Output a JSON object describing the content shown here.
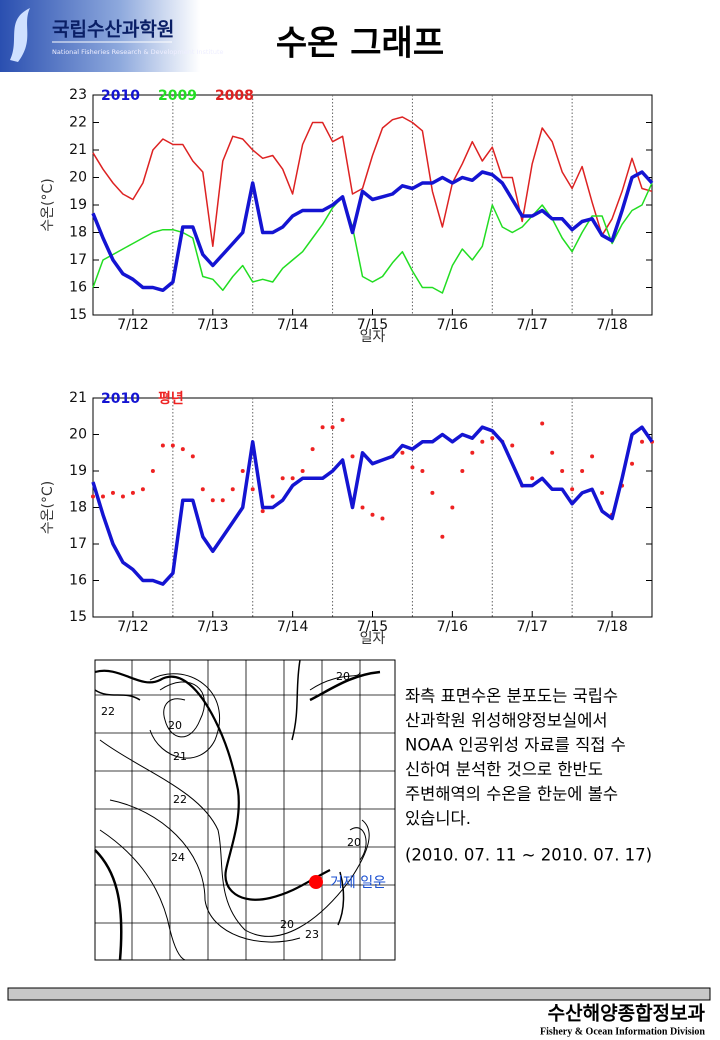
{
  "header": {
    "org": "국립수산과학원",
    "org_en": "National Fisheries Research & Development Institute",
    "title": "수온 그래프"
  },
  "chart_data": [
    {
      "type": "line",
      "xlabel": "일자",
      "ylabel": "수온(°C)",
      "xlim": [
        12,
        19
      ],
      "ylim": [
        15,
        23
      ],
      "xticks": [
        {
          "value": 12.5,
          "label": "7/12"
        },
        {
          "value": 13.5,
          "label": "7/13"
        },
        {
          "value": 14.5,
          "label": "7/14"
        },
        {
          "value": 15.5,
          "label": "7/15"
        },
        {
          "value": 16.5,
          "label": "7/16"
        },
        {
          "value": 17.5,
          "label": "7/17"
        },
        {
          "value": 18.5,
          "label": "7/18"
        }
      ],
      "yticks": [
        15,
        16,
        17,
        18,
        19,
        20,
        21,
        22,
        23
      ],
      "x": [
        12,
        12.125,
        12.25,
        12.375,
        12.5,
        12.625,
        12.75,
        12.875,
        13,
        13.125,
        13.25,
        13.375,
        13.5,
        13.625,
        13.75,
        13.875,
        14,
        14.125,
        14.25,
        14.375,
        14.5,
        14.625,
        14.75,
        14.875,
        15,
        15.125,
        15.25,
        15.375,
        15.5,
        15.625,
        15.75,
        15.875,
        16,
        16.125,
        16.25,
        16.375,
        16.5,
        16.625,
        16.75,
        16.875,
        17,
        17.125,
        17.25,
        17.375,
        17.5,
        17.625,
        17.75,
        17.875,
        18,
        18.125,
        18.25,
        18.375,
        18.5,
        18.625,
        18.75,
        18.875,
        19
      ],
      "series": [
        {
          "name": "2010",
          "color": "#1414d2",
          "width": 3.5,
          "style": "line",
          "values": [
            18.7,
            17.8,
            17.0,
            16.5,
            16.3,
            16.0,
            16.0,
            15.9,
            16.2,
            18.2,
            18.2,
            17.2,
            16.8,
            17.2,
            17.6,
            18.0,
            19.8,
            18.0,
            18.0,
            18.2,
            18.6,
            18.8,
            18.8,
            18.8,
            19.0,
            19.3,
            18.0,
            19.5,
            19.2,
            19.3,
            19.4,
            19.7,
            19.6,
            19.8,
            19.8,
            20.0,
            19.8,
            20.0,
            19.9,
            20.2,
            20.1,
            19.8,
            19.2,
            18.6,
            18.6,
            18.8,
            18.5,
            18.5,
            18.1,
            18.4,
            18.5,
            17.9,
            17.7,
            18.8,
            20.0,
            20.2,
            19.8
          ]
        },
        {
          "name": "2009",
          "color": "#22dd22",
          "width": 1.5,
          "style": "line",
          "values": [
            16.0,
            17.0,
            17.2,
            17.4,
            17.6,
            17.8,
            18.0,
            18.1,
            18.1,
            18.0,
            17.8,
            16.4,
            16.3,
            15.9,
            16.4,
            16.8,
            16.2,
            16.3,
            16.2,
            16.7,
            17.0,
            17.3,
            17.8,
            18.3,
            18.9,
            19.3,
            18.2,
            16.4,
            16.2,
            16.4,
            16.9,
            17.3,
            16.6,
            16.0,
            16.0,
            15.8,
            16.8,
            17.4,
            17.0,
            17.5,
            19.0,
            18.2,
            18.0,
            18.2,
            18.6,
            19.0,
            18.5,
            17.8,
            17.3,
            18.0,
            18.6,
            18.6,
            17.6,
            18.3,
            18.8,
            19.0,
            19.8
          ]
        },
        {
          "name": "2008",
          "color": "#dd2222",
          "width": 1.5,
          "style": "line",
          "values": [
            20.9,
            20.3,
            19.8,
            19.4,
            19.2,
            19.8,
            21.0,
            21.4,
            21.2,
            21.2,
            20.6,
            20.2,
            17.5,
            20.6,
            21.5,
            21.4,
            21.0,
            20.7,
            20.8,
            20.3,
            19.4,
            21.2,
            22.0,
            22.0,
            21.3,
            21.5,
            19.4,
            19.6,
            20.8,
            21.8,
            22.1,
            22.2,
            22.0,
            21.7,
            19.5,
            18.2,
            19.8,
            20.5,
            21.3,
            20.6,
            21.1,
            20.0,
            20.0,
            18.4,
            20.5,
            21.8,
            21.3,
            20.2,
            19.6,
            20.4,
            19.1,
            17.9,
            18.5,
            19.5,
            20.7,
            19.6,
            19.5
          ]
        }
      ]
    },
    {
      "type": "line",
      "xlabel": "일자",
      "ylabel": "수온(°C)",
      "xlim": [
        12,
        19
      ],
      "ylim": [
        15,
        21
      ],
      "xticks": [
        {
          "value": 12.5,
          "label": "7/12"
        },
        {
          "value": 13.5,
          "label": "7/13"
        },
        {
          "value": 14.5,
          "label": "7/14"
        },
        {
          "value": 15.5,
          "label": "7/15"
        },
        {
          "value": 16.5,
          "label": "7/16"
        },
        {
          "value": 17.5,
          "label": "7/17"
        },
        {
          "value": 18.5,
          "label": "7/18"
        }
      ],
      "yticks": [
        15,
        16,
        17,
        18,
        19,
        20,
        21
      ],
      "x": [
        12,
        12.125,
        12.25,
        12.375,
        12.5,
        12.625,
        12.75,
        12.875,
        13,
        13.125,
        13.25,
        13.375,
        13.5,
        13.625,
        13.75,
        13.875,
        14,
        14.125,
        14.25,
        14.375,
        14.5,
        14.625,
        14.75,
        14.875,
        15,
        15.125,
        15.25,
        15.375,
        15.5,
        15.625,
        15.75,
        15.875,
        16,
        16.125,
        16.25,
        16.375,
        16.5,
        16.625,
        16.75,
        16.875,
        17,
        17.125,
        17.25,
        17.375,
        17.5,
        17.625,
        17.75,
        17.875,
        18,
        18.125,
        18.25,
        18.375,
        18.5,
        18.625,
        18.75,
        18.875,
        19
      ],
      "series": [
        {
          "name": "2010",
          "color": "#1414d2",
          "width": 3.5,
          "style": "line",
          "values": [
            18.7,
            17.8,
            17.0,
            16.5,
            16.3,
            16.0,
            16.0,
            15.9,
            16.2,
            18.2,
            18.2,
            17.2,
            16.8,
            17.2,
            17.6,
            18.0,
            19.8,
            18.0,
            18.0,
            18.2,
            18.6,
            18.8,
            18.8,
            18.8,
            19.0,
            19.3,
            18.0,
            19.5,
            19.2,
            19.3,
            19.4,
            19.7,
            19.6,
            19.8,
            19.8,
            20.0,
            19.8,
            20.0,
            19.9,
            20.2,
            20.1,
            19.8,
            19.2,
            18.6,
            18.6,
            18.8,
            18.5,
            18.5,
            18.1,
            18.4,
            18.5,
            17.9,
            17.7,
            18.8,
            20.0,
            20.2,
            19.8
          ]
        },
        {
          "name": "평년",
          "color": "#ee2222",
          "width": 2,
          "style": "markers",
          "values": [
            18.3,
            18.3,
            18.4,
            18.3,
            18.4,
            18.5,
            19.0,
            19.7,
            19.7,
            19.6,
            19.4,
            18.5,
            18.2,
            18.2,
            18.5,
            19.0,
            18.5,
            17.9,
            18.3,
            18.8,
            18.8,
            19.0,
            19.6,
            20.2,
            20.2,
            20.4,
            19.4,
            18.0,
            17.8,
            17.7,
            19.4,
            19.5,
            19.1,
            19.0,
            18.4,
            17.2,
            18.0,
            19.0,
            19.5,
            19.8,
            19.9,
            19.8,
            19.7,
            18.6,
            18.8,
            20.3,
            19.5,
            19.0,
            18.5,
            19.0,
            19.4,
            18.4,
            17.8,
            18.6,
            19.2,
            19.8,
            19.8
          ]
        }
      ]
    }
  ],
  "map": {
    "contours": [
      "22",
      "20",
      "21",
      "22",
      "24",
      "20",
      "20",
      "23",
      "20"
    ],
    "station": "거제 일운"
  },
  "text": {
    "lines": [
      "좌측 표면수온 분포도는 국립수",
      "산과학원 위성해양정보실에서",
      "NOAA 인공위성 자료를 직접 수",
      "신하여 분석한 것으로  한반도",
      "주변해역의 수온을 한눈에 볼수",
      "있습니다."
    ],
    "period": "(2010. 07. 11 ~ 2010. 07. 17)"
  },
  "footer": {
    "division": "수산해양종합정보과",
    "division_en": "Fishery & Ocean Information Division"
  }
}
